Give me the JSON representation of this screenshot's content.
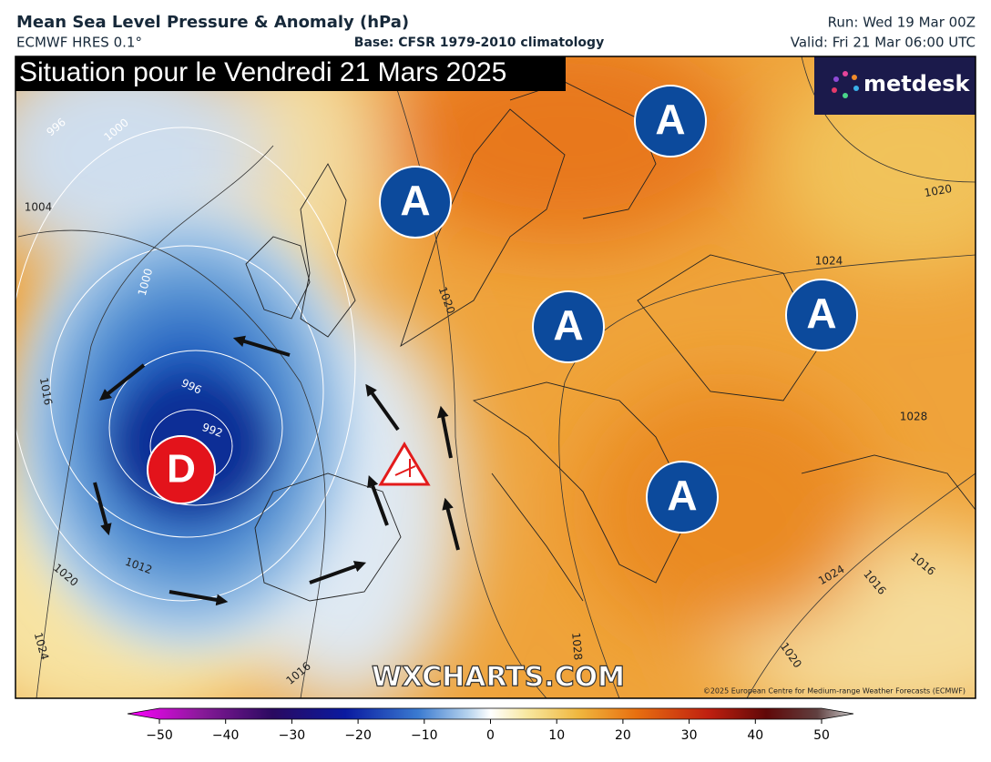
{
  "header": {
    "title": "Mean Sea Level Pressure & Anomaly (hPa)",
    "model": "ECMWF HRES 0.1°",
    "base": "Base: CFSR 1979-2010 climatology",
    "run": "Run: Wed 19 Mar 00Z",
    "valid": "Valid: Fri 21 Mar 06:00 UTC"
  },
  "map": {
    "banner": "Situation pour le Vendredi 21 Mars 2025",
    "logo": "metdesk",
    "watermark": "WXCHARTS.COM",
    "copyright": "©2025 European Centre for Medium-range Weather Forecasts (ECMWF)",
    "highs": [
      "A",
      "A",
      "A",
      "A",
      "A"
    ],
    "low": "D",
    "isobar_labels": [
      996,
      1000,
      1004,
      1000,
      996,
      992,
      1016,
      1012,
      1020,
      1024,
      1020,
      1024,
      1028,
      1020,
      1028,
      1020,
      1024,
      1016,
      1016,
      1016
    ]
  },
  "colorbar": {
    "lim": [
      -50,
      50
    ],
    "ticks": [
      {
        "value": -50,
        "label": "−50"
      },
      {
        "value": -40,
        "label": "−40"
      },
      {
        "value": -30,
        "label": "−30"
      },
      {
        "value": -20,
        "label": "−20"
      },
      {
        "value": -10,
        "label": "−10"
      },
      0,
      10,
      20,
      30,
      40,
      50
    ]
  }
}
